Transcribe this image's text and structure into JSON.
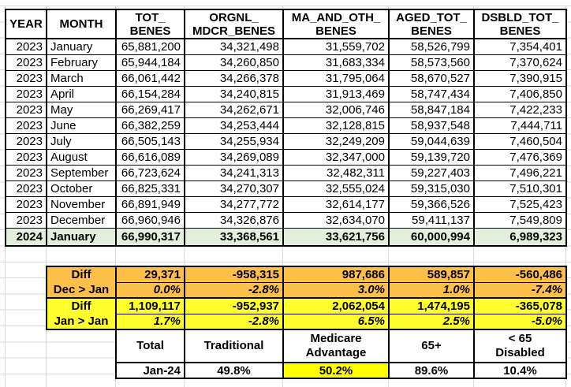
{
  "colors": {
    "highlight_row_green": "#e2efda",
    "diff_orange": "#fcbf4a",
    "diff_yellow": "#ffff2e",
    "summary_highlight_yellow": "#ffff00",
    "table_border": "#000000",
    "spreadsheet_gridline": "#d8dadc"
  },
  "main_table": {
    "headers": [
      "YEAR",
      "MONTH",
      "TOT_\nBENES",
      "ORGNL_\nMDCR_BENES",
      "MA_AND_OTH_\nBENES",
      "AGED_TOT_\nBENES",
      "DSBLD_TOT_\nBENES"
    ],
    "rows": [
      [
        "2023",
        "January",
        "65,881,200",
        "34,321,498",
        "31,559,702",
        "58,526,799",
        "7,354,401"
      ],
      [
        "2023",
        "February",
        "65,944,184",
        "34,260,850",
        "31,683,334",
        "58,573,560",
        "7,370,624"
      ],
      [
        "2023",
        "March",
        "66,061,442",
        "34,266,378",
        "31,795,064",
        "58,670,527",
        "7,390,915"
      ],
      [
        "2023",
        "April",
        "66,154,284",
        "34,240,815",
        "31,913,469",
        "58,747,434",
        "7,406,850"
      ],
      [
        "2023",
        "May",
        "66,269,417",
        "34,262,671",
        "32,006,746",
        "58,847,184",
        "7,422,233"
      ],
      [
        "2023",
        "June",
        "66,382,259",
        "34,253,444",
        "32,128,815",
        "58,937,548",
        "7,444,711"
      ],
      [
        "2023",
        "July",
        "66,505,143",
        "34,255,934",
        "32,249,209",
        "59,044,639",
        "7,460,504"
      ],
      [
        "2023",
        "August",
        "66,616,089",
        "34,269,089",
        "32,347,000",
        "59,139,720",
        "7,476,369"
      ],
      [
        "2023",
        "September",
        "66,723,624",
        "34,241,313",
        "32,482,311",
        "59,227,403",
        "7,496,221"
      ],
      [
        "2023",
        "October",
        "66,825,331",
        "34,270,307",
        "32,555,024",
        "59,315,030",
        "7,510,301"
      ],
      [
        "2023",
        "November",
        "66,891,949",
        "34,277,772",
        "32,614,177",
        "59,366,526",
        "7,525,423"
      ],
      [
        "2023",
        "December",
        "66,960,946",
        "34,326,876",
        "32,634,070",
        "59,411,137",
        "7,549,809"
      ]
    ],
    "highlight_row": [
      "2024",
      "January",
      "66,990,317",
      "33,368,561",
      "33,621,756",
      "60,000,994",
      "6,989,323"
    ]
  },
  "diff_table": {
    "blocks": [
      {
        "label": "Diff\nDec > Jan",
        "values_abs": [
          "29,371",
          "-958,315",
          "987,686",
          "589,857",
          "-560,486"
        ],
        "values_pct": [
          "0.0%",
          "-2.8%",
          "3.0%",
          "1.0%",
          "-7.4%"
        ]
      },
      {
        "label": "Diff\nJan > Jan",
        "values_abs": [
          "1,109,117",
          "-952,937",
          "2,062,054",
          "1,474,195",
          "-365,078"
        ],
        "values_pct": [
          "1.7%",
          "-2.8%",
          "6.5%",
          "2.5%",
          "-5.0%"
        ]
      }
    ]
  },
  "summary_table": {
    "headers": [
      "Total",
      "Traditional",
      "Medicare\nAdvantage",
      "65+",
      "< 65\nDisabled"
    ],
    "row_label": "Jan-24",
    "values": [
      "49.8%",
      "50.2%",
      "89.6%",
      "10.4%"
    ],
    "highlighted_value": "50.2%"
  }
}
